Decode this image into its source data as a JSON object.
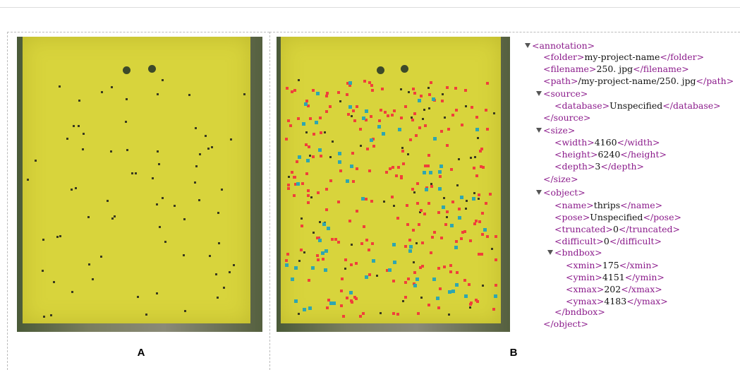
{
  "panels": [
    {
      "label": "A"
    },
    {
      "label": "B"
    }
  ],
  "xml": {
    "lines": [
      {
        "open": "<annotation>"
      },
      {
        "open": "<folder>",
        "text": "my-project-name",
        "close": "</folder>"
      },
      {
        "open": "<filename>",
        "text": "250. jpg",
        "close": "</filename>"
      },
      {
        "open": "<path>",
        "text": "/my-project-name/250. jpg",
        "close": "</path>"
      },
      {
        "open": "<source>"
      },
      {
        "open": "<database>",
        "text": "Unspecified",
        "close": "</database>"
      },
      {
        "close": "</source>"
      },
      {
        "open": "<size>"
      },
      {
        "open": "<width>",
        "text": "4160",
        "close": "</width>"
      },
      {
        "open": "<height>",
        "text": "6240",
        "close": "</height>"
      },
      {
        "open": "<depth>",
        "text": "3",
        "close": "</depth>"
      },
      {
        "close": "</size>"
      },
      {
        "open": "<object>"
      },
      {
        "open": "<name>",
        "text": "thrips",
        "close": "</name>"
      },
      {
        "open": "<pose>",
        "text": "Unspecified",
        "close": "</pose>"
      },
      {
        "open": "<truncated>",
        "text": "0",
        "close": "</truncated>"
      },
      {
        "open": "<difficult>",
        "text": "0",
        "close": "</difficult>"
      },
      {
        "open": "<bndbox>"
      },
      {
        "open": "<xmin>",
        "text": "175",
        "close": "</xmin>"
      },
      {
        "open": "<ymin>",
        "text": "4151",
        "close": "</ymin>"
      },
      {
        "open": "<xmax>",
        "text": "202",
        "close": "</xmax>"
      },
      {
        "open": "<ymax>",
        "text": "4183",
        "close": "</ymax>"
      },
      {
        "close": "</bndbox>"
      },
      {
        "close": "</object>"
      }
    ]
  }
}
